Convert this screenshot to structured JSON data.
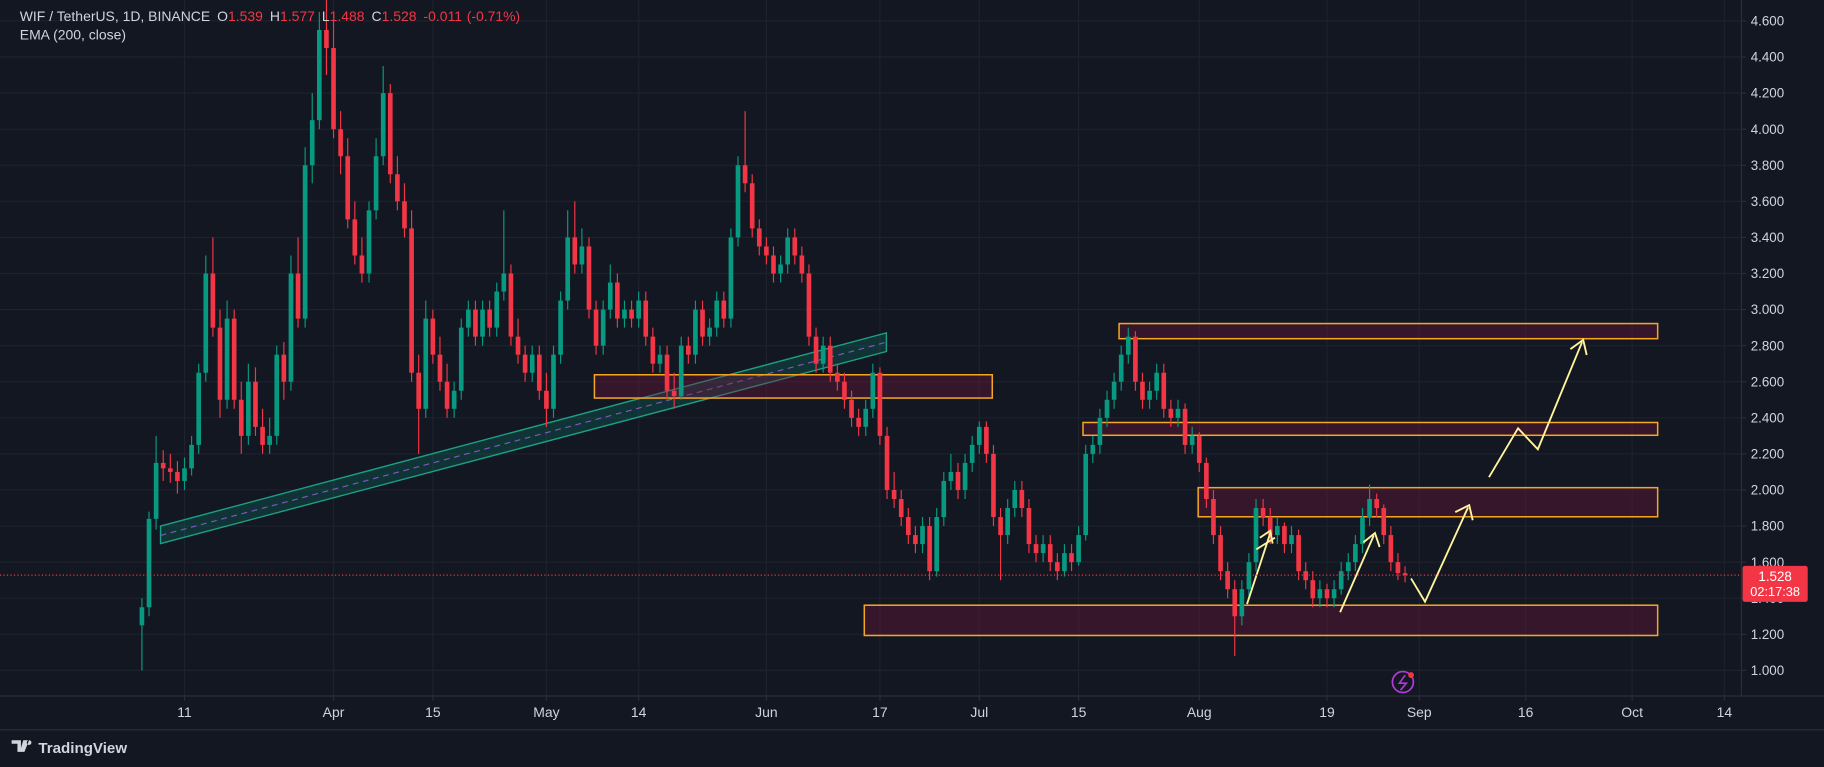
{
  "header": {
    "symbol": "WIF / TetherUS, 1D, BINANCE",
    "legend": [
      {
        "key": "O",
        "value": 1.539
      },
      {
        "key": "H",
        "value": 1.577
      },
      {
        "key": "L",
        "value": 1.488
      },
      {
        "key": "C",
        "value": 1.528
      }
    ],
    "change": -0.011,
    "change_percent": {
      "value": -0.71,
      "label": "(-0.71%)"
    },
    "indicator": "EMA (200, close)"
  },
  "chart_data": {
    "type": "candlestick",
    "up_color": "#089981",
    "down_color": "#f23645",
    "xlim": [
      -20,
      225.4
    ],
    "ylim": [
      0.858,
      4.716
    ],
    "xticks": [
      {
        "value": 6,
        "label": "11"
      },
      {
        "value": 27,
        "label": "Apr"
      },
      {
        "value": 41,
        "label": "15"
      },
      {
        "value": 57,
        "label": "May"
      },
      {
        "value": 70,
        "label": "14"
      },
      {
        "value": 88,
        "label": "Jun"
      },
      {
        "value": 104,
        "label": "17"
      },
      {
        "value": 118,
        "label": "Jul"
      },
      {
        "value": 132,
        "label": "15"
      },
      {
        "value": 149,
        "label": "Aug"
      },
      {
        "value": 167,
        "label": "19"
      },
      {
        "value": 180,
        "label": "Sep"
      },
      {
        "value": 195,
        "label": "16"
      },
      {
        "value": 210,
        "label": "Oct"
      },
      {
        "value": 223,
        "label": "14"
      }
    ],
    "yticks": [
      {
        "value": 1.0,
        "label": "1.000"
      },
      {
        "value": 1.2,
        "label": "1.200"
      },
      {
        "value": 1.4,
        "label": "1.400"
      },
      {
        "value": 1.6,
        "label": "1.600"
      },
      {
        "value": 1.8,
        "label": "1.800"
      },
      {
        "value": 2.0,
        "label": "2.000"
      },
      {
        "value": 2.2,
        "label": "2.200"
      },
      {
        "value": 2.4,
        "label": "2.400"
      },
      {
        "value": 2.6,
        "label": "2.600"
      },
      {
        "value": 2.8,
        "label": "2.800"
      },
      {
        "value": 3.0,
        "label": "3.000"
      },
      {
        "value": 3.2,
        "label": "3.200"
      },
      {
        "value": 3.4,
        "label": "3.400"
      },
      {
        "value": 3.6,
        "label": "3.600"
      },
      {
        "value": 3.8,
        "label": "3.800"
      },
      {
        "value": 4.0,
        "label": "4.000"
      },
      {
        "value": 4.2,
        "label": "4.200"
      },
      {
        "value": 4.4,
        "label": "4.400"
      },
      {
        "value": 4.6,
        "label": "4.600"
      }
    ],
    "grid": true,
    "countdown": "02:17:38",
    "ohlc": [
      [
        1.25,
        1.4,
        1.0,
        1.35
      ],
      [
        1.35,
        1.88,
        1.3,
        1.84
      ],
      [
        1.84,
        2.3,
        1.78,
        2.15
      ],
      [
        2.15,
        2.22,
        2.05,
        2.12
      ],
      [
        2.12,
        2.2,
        2.04,
        2.1
      ],
      [
        2.1,
        2.16,
        1.98,
        2.05
      ],
      [
        2.05,
        2.18,
        2.0,
        2.12
      ],
      [
        2.12,
        2.3,
        2.08,
        2.25
      ],
      [
        2.25,
        2.7,
        2.2,
        2.65
      ],
      [
        2.65,
        3.3,
        2.6,
        3.2
      ],
      [
        3.2,
        3.4,
        2.85,
        2.9
      ],
      [
        2.9,
        3.0,
        2.4,
        2.5
      ],
      [
        2.5,
        3.05,
        2.45,
        2.95
      ],
      [
        2.95,
        3.0,
        2.45,
        2.5
      ],
      [
        2.5,
        2.6,
        2.2,
        2.3
      ],
      [
        2.3,
        2.7,
        2.25,
        2.6
      ],
      [
        2.6,
        2.68,
        2.3,
        2.35
      ],
      [
        2.35,
        2.45,
        2.2,
        2.25
      ],
      [
        2.25,
        2.4,
        2.2,
        2.3
      ],
      [
        2.3,
        2.8,
        2.25,
        2.75
      ],
      [
        2.75,
        2.82,
        2.5,
        2.6
      ],
      [
        2.6,
        3.3,
        2.55,
        3.2
      ],
      [
        3.2,
        3.4,
        2.9,
        2.95
      ],
      [
        2.95,
        3.9,
        2.9,
        3.8
      ],
      [
        3.8,
        4.2,
        3.7,
        4.05
      ],
      [
        4.05,
        4.65,
        4.0,
        4.55
      ],
      [
        4.55,
        4.75,
        4.3,
        4.45
      ],
      [
        4.45,
        4.6,
        3.95,
        4.0
      ],
      [
        4.0,
        4.1,
        3.75,
        3.85
      ],
      [
        3.85,
        3.95,
        3.45,
        3.5
      ],
      [
        3.5,
        3.6,
        3.25,
        3.3
      ],
      [
        3.3,
        3.4,
        3.15,
        3.2
      ],
      [
        3.2,
        3.6,
        3.15,
        3.55
      ],
      [
        3.55,
        3.95,
        3.5,
        3.85
      ],
      [
        3.85,
        4.35,
        3.8,
        4.2
      ],
      [
        4.2,
        4.25,
        3.7,
        3.75
      ],
      [
        3.75,
        3.85,
        3.55,
        3.6
      ],
      [
        3.6,
        3.7,
        3.4,
        3.45
      ],
      [
        3.45,
        3.55,
        2.6,
        2.65
      ],
      [
        2.65,
        2.75,
        2.2,
        2.45
      ],
      [
        2.45,
        3.05,
        2.4,
        2.95
      ],
      [
        2.95,
        3.0,
        2.7,
        2.75
      ],
      [
        2.75,
        2.85,
        2.55,
        2.6
      ],
      [
        2.6,
        2.7,
        2.4,
        2.45
      ],
      [
        2.45,
        2.6,
        2.4,
        2.55
      ],
      [
        2.55,
        2.95,
        2.5,
        2.9
      ],
      [
        2.9,
        3.05,
        2.85,
        3.0
      ],
      [
        3.0,
        3.05,
        2.8,
        2.85
      ],
      [
        2.85,
        3.05,
        2.8,
        3.0
      ],
      [
        3.0,
        3.05,
        2.85,
        2.9
      ],
      [
        2.9,
        3.15,
        2.85,
        3.1
      ],
      [
        3.1,
        3.55,
        3.05,
        3.2
      ],
      [
        3.2,
        3.25,
        2.8,
        2.85
      ],
      [
        2.85,
        2.95,
        2.7,
        2.75
      ],
      [
        2.75,
        2.8,
        2.6,
        2.65
      ],
      [
        2.65,
        2.8,
        2.6,
        2.75
      ],
      [
        2.75,
        2.8,
        2.5,
        2.55
      ],
      [
        2.55,
        2.65,
        2.35,
        2.45
      ],
      [
        2.45,
        2.8,
        2.4,
        2.75
      ],
      [
        2.75,
        3.1,
        2.7,
        3.05
      ],
      [
        3.05,
        3.55,
        3.0,
        3.4
      ],
      [
        3.4,
        3.6,
        3.2,
        3.25
      ],
      [
        3.25,
        3.45,
        3.2,
        3.35
      ],
      [
        3.35,
        3.4,
        2.95,
        3.0
      ],
      [
        3.0,
        3.05,
        2.75,
        2.8
      ],
      [
        2.8,
        3.05,
        2.75,
        3.0
      ],
      [
        3.0,
        3.25,
        2.95,
        3.15
      ],
      [
        3.15,
        3.2,
        2.9,
        2.95
      ],
      [
        2.95,
        3.05,
        2.9,
        3.0
      ],
      [
        3.0,
        3.05,
        2.9,
        2.95
      ],
      [
        2.95,
        3.1,
        2.9,
        3.05
      ],
      [
        3.05,
        3.1,
        2.8,
        2.85
      ],
      [
        2.85,
        2.9,
        2.65,
        2.7
      ],
      [
        2.7,
        2.8,
        2.65,
        2.75
      ],
      [
        2.75,
        2.8,
        2.5,
        2.55
      ],
      [
        2.55,
        2.65,
        2.45,
        2.52
      ],
      [
        2.52,
        2.85,
        2.5,
        2.8
      ],
      [
        2.8,
        2.85,
        2.7,
        2.75
      ],
      [
        2.75,
        3.05,
        2.7,
        3.0
      ],
      [
        3.0,
        3.05,
        2.8,
        2.85
      ],
      [
        2.85,
        2.95,
        2.8,
        2.9
      ],
      [
        2.9,
        3.1,
        2.85,
        3.05
      ],
      [
        3.05,
        3.1,
        2.9,
        2.95
      ],
      [
        2.95,
        3.45,
        2.9,
        3.4
      ],
      [
        3.4,
        3.85,
        3.35,
        3.8
      ],
      [
        3.8,
        4.1,
        3.65,
        3.7
      ],
      [
        3.7,
        3.75,
        3.4,
        3.45
      ],
      [
        3.45,
        3.5,
        3.3,
        3.35
      ],
      [
        3.35,
        3.4,
        3.25,
        3.3
      ],
      [
        3.3,
        3.35,
        3.15,
        3.2
      ],
      [
        3.2,
        3.3,
        3.15,
        3.25
      ],
      [
        3.25,
        3.45,
        3.2,
        3.4
      ],
      [
        3.4,
        3.45,
        3.25,
        3.3
      ],
      [
        3.3,
        3.35,
        3.15,
        3.2
      ],
      [
        3.2,
        3.25,
        2.8,
        2.85
      ],
      [
        2.85,
        2.9,
        2.65,
        2.7
      ],
      [
        2.7,
        2.85,
        2.65,
        2.8
      ],
      [
        2.8,
        2.85,
        2.6,
        2.65
      ],
      [
        2.65,
        2.7,
        2.55,
        2.6
      ],
      [
        2.6,
        2.65,
        2.45,
        2.5
      ],
      [
        2.5,
        2.55,
        2.35,
        2.4
      ],
      [
        2.4,
        2.45,
        2.3,
        2.35
      ],
      [
        2.35,
        2.5,
        2.3,
        2.45
      ],
      [
        2.45,
        2.7,
        2.4,
        2.65
      ],
      [
        2.65,
        2.68,
        2.25,
        2.3
      ],
      [
        2.3,
        2.35,
        1.95,
        2.0
      ],
      [
        2.0,
        2.1,
        1.9,
        1.95
      ],
      [
        1.95,
        2.0,
        1.8,
        1.85
      ],
      [
        1.85,
        1.9,
        1.7,
        1.75
      ],
      [
        1.75,
        1.8,
        1.65,
        1.7
      ],
      [
        1.7,
        1.85,
        1.65,
        1.8
      ],
      [
        1.8,
        1.85,
        1.5,
        1.55
      ],
      [
        1.55,
        1.9,
        1.52,
        1.85
      ],
      [
        1.85,
        2.1,
        1.8,
        2.05
      ],
      [
        2.05,
        2.2,
        2.0,
        2.1
      ],
      [
        2.1,
        2.15,
        1.95,
        2.0
      ],
      [
        2.0,
        2.2,
        1.95,
        2.15
      ],
      [
        2.15,
        2.3,
        2.1,
        2.25
      ],
      [
        2.25,
        2.38,
        2.2,
        2.35
      ],
      [
        2.35,
        2.38,
        2.15,
        2.2
      ],
      [
        2.2,
        2.25,
        1.8,
        1.85
      ],
      [
        1.85,
        1.9,
        1.5,
        1.75
      ],
      [
        1.75,
        1.95,
        1.7,
        1.9
      ],
      [
        1.9,
        2.05,
        1.85,
        2.0
      ],
      [
        2.0,
        2.05,
        1.85,
        1.9
      ],
      [
        1.9,
        1.95,
        1.65,
        1.7
      ],
      [
        1.7,
        1.75,
        1.6,
        1.65
      ],
      [
        1.65,
        1.75,
        1.6,
        1.7
      ],
      [
        1.7,
        1.75,
        1.55,
        1.6
      ],
      [
        1.6,
        1.65,
        1.5,
        1.55
      ],
      [
        1.55,
        1.7,
        1.52,
        1.65
      ],
      [
        1.65,
        1.7,
        1.55,
        1.6
      ],
      [
        1.6,
        1.8,
        1.58,
        1.75
      ],
      [
        1.75,
        2.25,
        1.72,
        2.2
      ],
      [
        2.2,
        2.3,
        2.15,
        2.25
      ],
      [
        2.25,
        2.45,
        2.2,
        2.4
      ],
      [
        2.4,
        2.55,
        2.35,
        2.5
      ],
      [
        2.5,
        2.65,
        2.45,
        2.6
      ],
      [
        2.6,
        2.8,
        2.55,
        2.75
      ],
      [
        2.75,
        2.9,
        2.7,
        2.85
      ],
      [
        2.85,
        2.88,
        2.55,
        2.6
      ],
      [
        2.6,
        2.65,
        2.45,
        2.5
      ],
      [
        2.5,
        2.6,
        2.45,
        2.55
      ],
      [
        2.55,
        2.7,
        2.5,
        2.65
      ],
      [
        2.65,
        2.7,
        2.4,
        2.45
      ],
      [
        2.45,
        2.5,
        2.35,
        2.4
      ],
      [
        2.4,
        2.5,
        2.35,
        2.45
      ],
      [
        2.45,
        2.48,
        2.2,
        2.25
      ],
      [
        2.25,
        2.35,
        2.2,
        2.3
      ],
      [
        2.3,
        2.32,
        2.1,
        2.15
      ],
      [
        2.15,
        2.18,
        1.9,
        1.95
      ],
      [
        1.95,
        2.0,
        1.7,
        1.75
      ],
      [
        1.75,
        1.8,
        1.5,
        1.55
      ],
      [
        1.55,
        1.6,
        1.4,
        1.45
      ],
      [
        1.45,
        1.5,
        1.08,
        1.3
      ],
      [
        1.3,
        1.5,
        1.25,
        1.45
      ],
      [
        1.45,
        1.65,
        1.4,
        1.6
      ],
      [
        1.6,
        1.95,
        1.55,
        1.9
      ],
      [
        1.9,
        1.95,
        1.8,
        1.85
      ],
      [
        1.85,
        1.9,
        1.7,
        1.75
      ],
      [
        1.75,
        1.85,
        1.7,
        1.8
      ],
      [
        1.8,
        1.82,
        1.65,
        1.7
      ],
      [
        1.7,
        1.8,
        1.65,
        1.75
      ],
      [
        1.75,
        1.78,
        1.5,
        1.55
      ],
      [
        1.55,
        1.6,
        1.45,
        1.5
      ],
      [
        1.5,
        1.55,
        1.35,
        1.4
      ],
      [
        1.4,
        1.5,
        1.35,
        1.45
      ],
      [
        1.45,
        1.48,
        1.35,
        1.4
      ],
      [
        1.4,
        1.5,
        1.35,
        1.45
      ],
      [
        1.45,
        1.6,
        1.42,
        1.55
      ],
      [
        1.55,
        1.65,
        1.5,
        1.6
      ],
      [
        1.6,
        1.75,
        1.55,
        1.7
      ],
      [
        1.7,
        1.9,
        1.65,
        1.85
      ],
      [
        1.85,
        2.03,
        1.8,
        1.95
      ],
      [
        1.95,
        1.98,
        1.85,
        1.9
      ],
      [
        1.9,
        1.92,
        1.7,
        1.75
      ],
      [
        1.75,
        1.8,
        1.55,
        1.6
      ],
      [
        1.6,
        1.65,
        1.5,
        1.539
      ],
      [
        1.539,
        1.577,
        1.488,
        1.528
      ]
    ]
  },
  "footer": {
    "brand": "TradingView"
  }
}
